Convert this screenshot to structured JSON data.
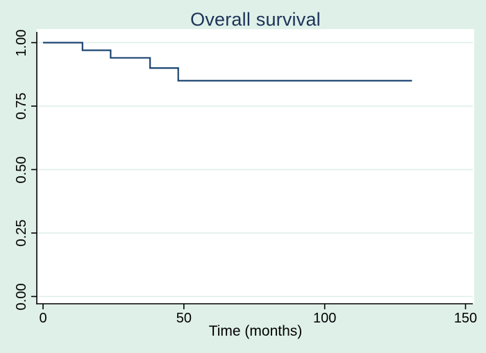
{
  "title": "Overall survival",
  "x_axis": {
    "label": "Time (months)",
    "tick_labels": [
      "0",
      "50",
      "100",
      "150"
    ],
    "tick_values": [
      0,
      50,
      100,
      150
    ]
  },
  "y_axis": {
    "tick_labels": [
      "1.00",
      "0.75",
      "0.50",
      "0.25",
      "0.00"
    ],
    "tick_values": [
      1.0,
      0.75,
      0.5,
      0.25,
      0.0
    ]
  },
  "colors": {
    "background": "#dff0e9",
    "plot_background": "#ffffff",
    "grid": "#ddefe9",
    "curve": "#1a4570",
    "title_text": "#1d3358",
    "axis_text": "#000000",
    "axis_line": "#000000"
  },
  "chart_data": {
    "type": "line",
    "style": "kaplan-meier-step",
    "title": "Overall survival",
    "xlabel": "Time (months)",
    "ylabel": "",
    "xlim": [
      0,
      150
    ],
    "ylim": [
      0,
      1
    ],
    "grid": "horizontal-only",
    "legend": "none",
    "x_ticks": [
      0,
      50,
      100,
      150
    ],
    "y_ticks": [
      1.0,
      0.75,
      0.5,
      0.25,
      0.0
    ],
    "series": [
      {
        "name": "Overall survival",
        "start_time": 0,
        "start_survival": 1.0,
        "drop_times": [
          14,
          24,
          38,
          48
        ],
        "survival_after_drop": [
          0.97,
          0.94,
          0.9,
          0.85
        ],
        "end_time": 131
      }
    ]
  }
}
